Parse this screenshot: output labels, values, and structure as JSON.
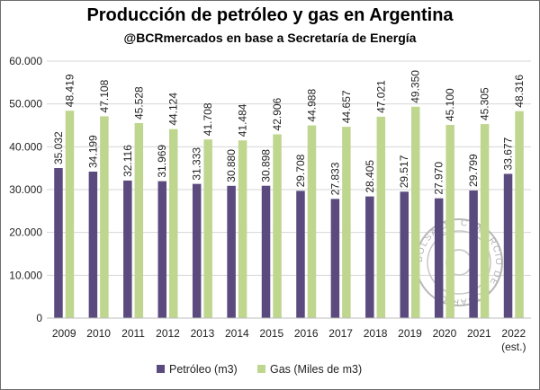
{
  "title": "Producción de petróleo y gas en Argentina",
  "subtitle": "@BCRmercados en base a Secretaría de Energía",
  "chart_data": {
    "type": "bar",
    "categories": [
      "2009",
      "2010",
      "2011",
      "2012",
      "2013",
      "2014",
      "2015",
      "2016",
      "2017",
      "2018",
      "2019",
      "2020",
      "2021",
      "2022"
    ],
    "category_notes": {
      "2022": "(est.)"
    },
    "series": [
      {
        "name": "Petróleo (m3)",
        "color": "#5b4a7e",
        "values": [
          35032,
          34199,
          32116,
          31969,
          31333,
          30880,
          30898,
          29708,
          27833,
          28405,
          29517,
          27970,
          29799,
          33677
        ],
        "labels": [
          "35.032",
          "34.199",
          "32.116",
          "31.969",
          "31.333",
          "30.880",
          "30.898",
          "29.708",
          "27.833",
          "28.405",
          "29.517",
          "27.970",
          "29.799",
          "33.677"
        ]
      },
      {
        "name": "Gas (Miles de m3)",
        "color": "#bfd68f",
        "values": [
          48419,
          47108,
          45528,
          44124,
          41708,
          41484,
          42906,
          44988,
          44657,
          47021,
          49350,
          45100,
          45305,
          48316
        ],
        "labels": [
          "48.419",
          "47.108",
          "45.528",
          "44.124",
          "41.708",
          "41.484",
          "42.906",
          "44.988",
          "44.657",
          "47.021",
          "49.350",
          "45.100",
          "45.305",
          "48.316"
        ]
      }
    ],
    "ylim": [
      0,
      60000
    ],
    "yticks": [
      0,
      10000,
      20000,
      30000,
      40000,
      50000,
      60000
    ],
    "ytick_labels": [
      "0",
      "10.000",
      "20.000",
      "30.000",
      "40.000",
      "50.000",
      "60.000"
    ],
    "grid": true,
    "legend_position": "bottom",
    "watermark_text": "BOLSA DE COMERCIO DE ROSARIO"
  }
}
